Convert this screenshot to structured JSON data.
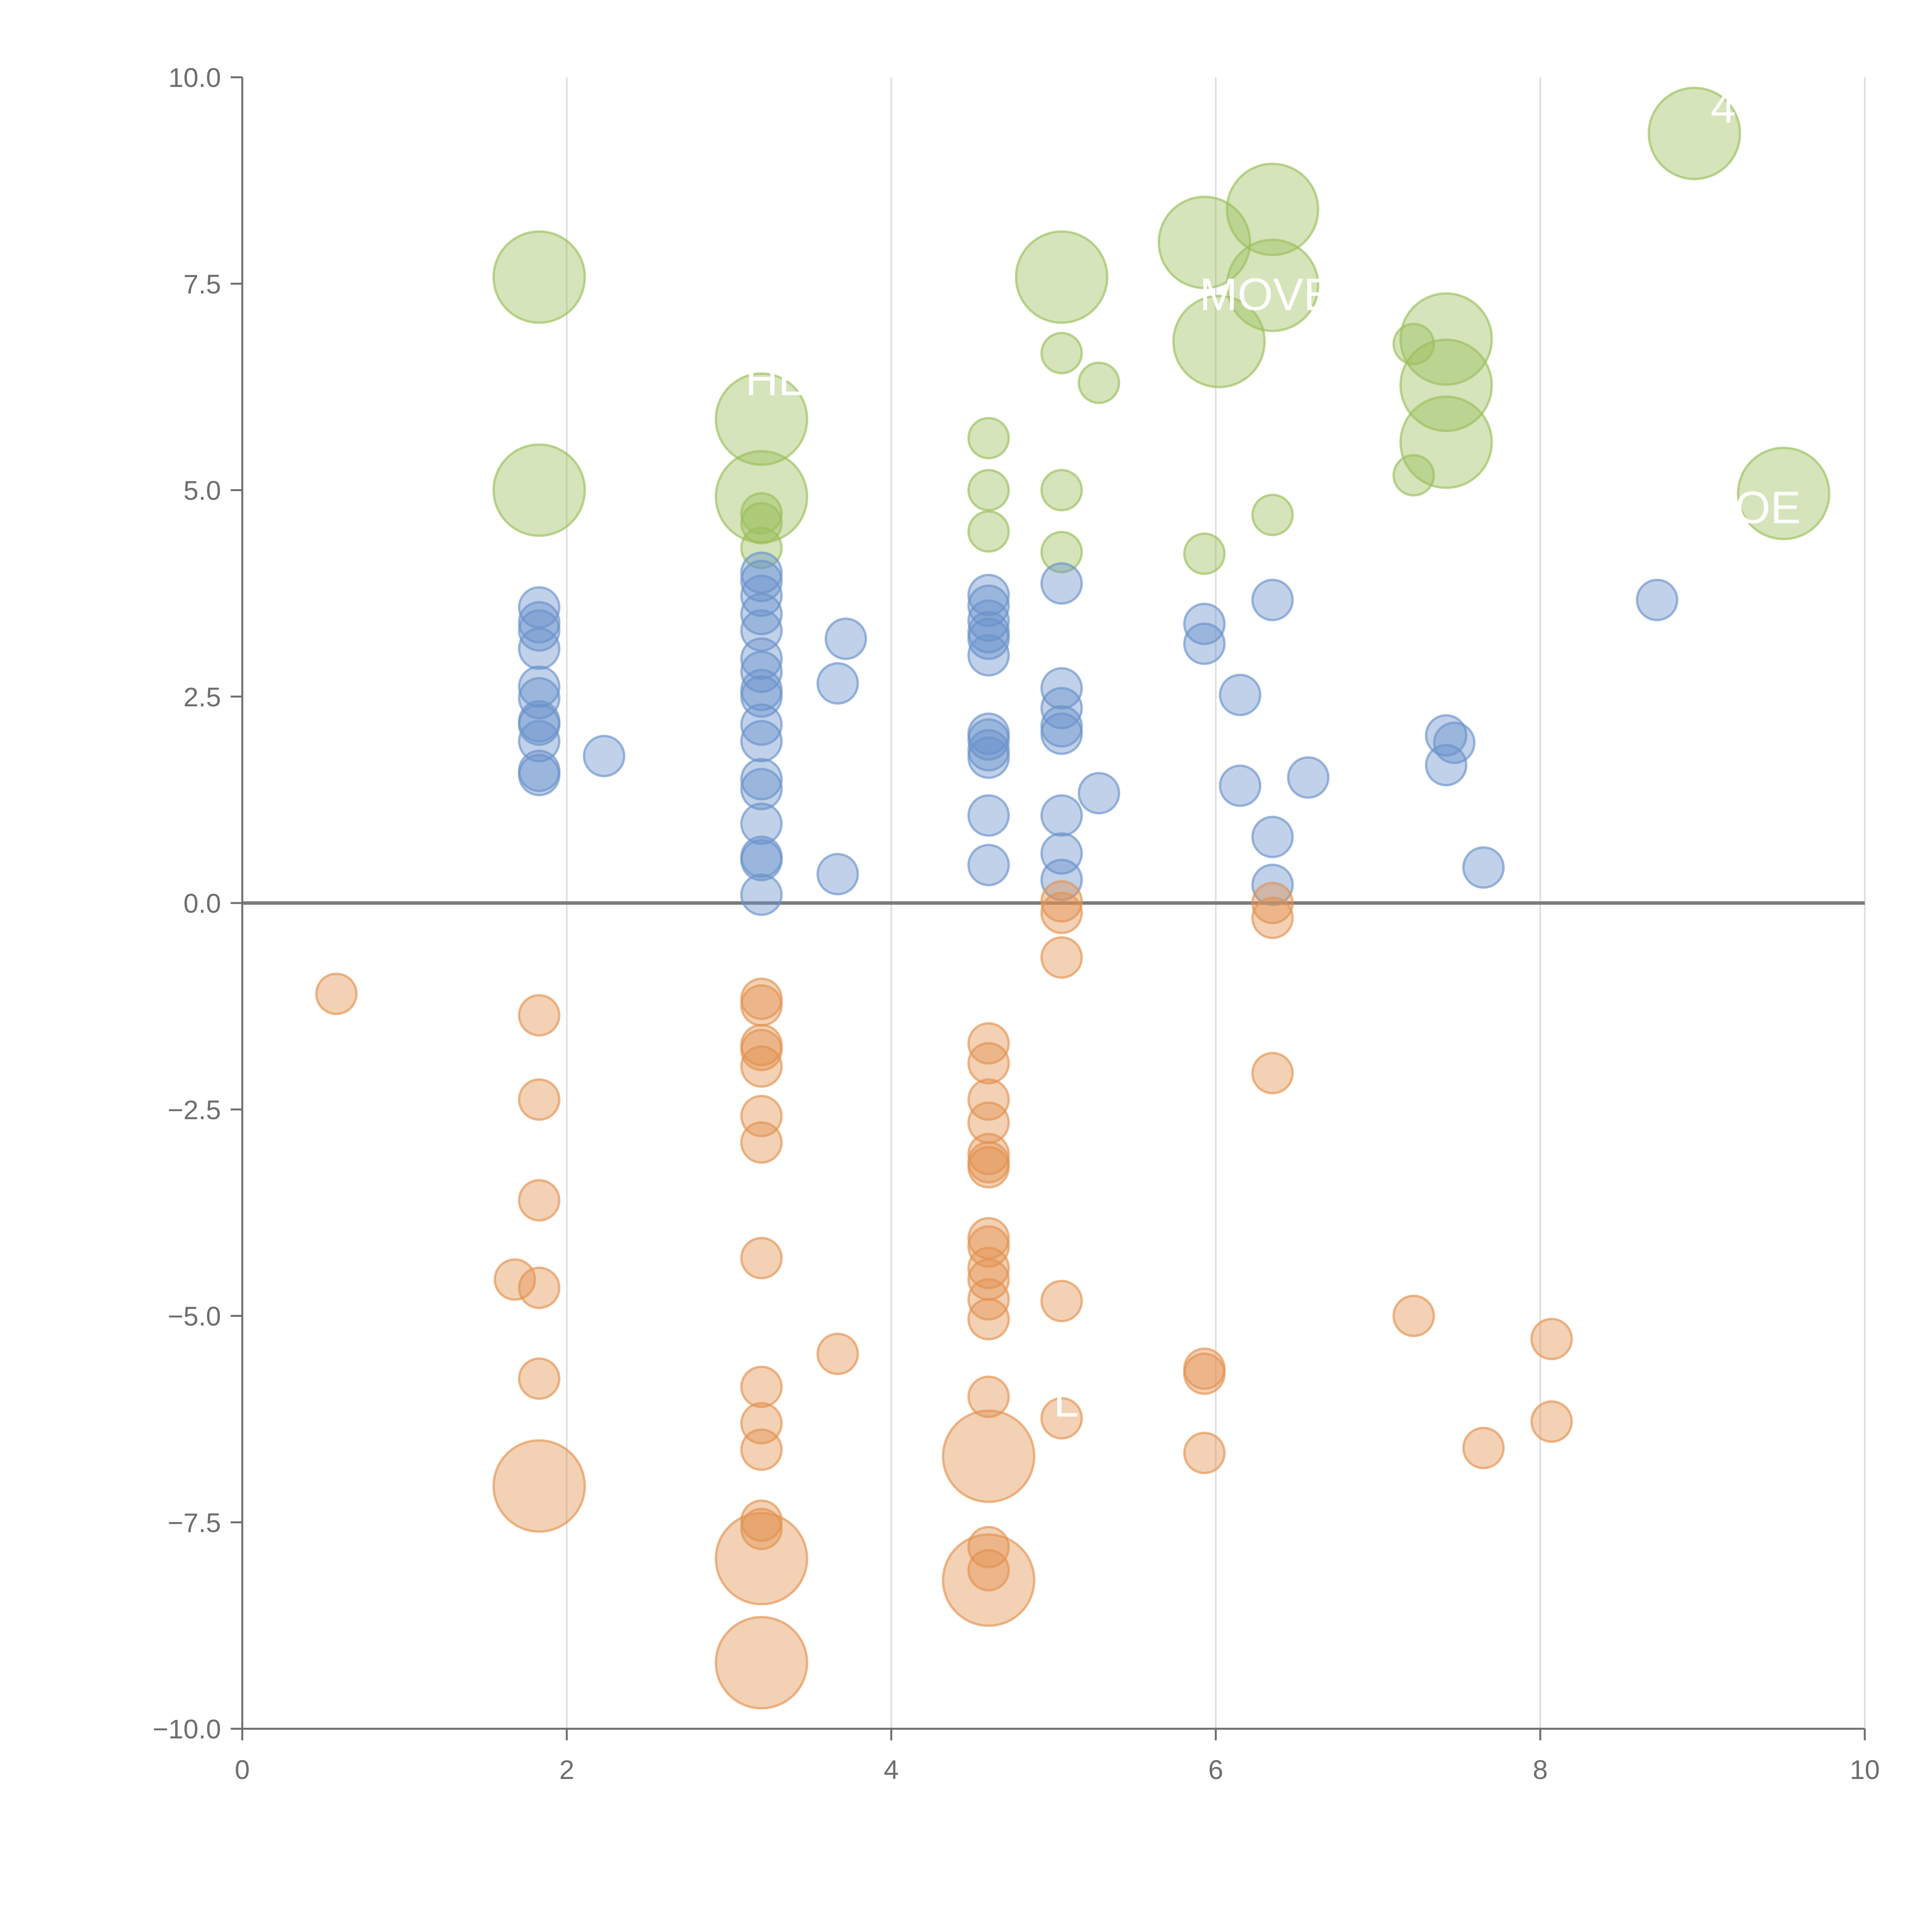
{
  "chart_data": {
    "type": "scatter",
    "title": "",
    "xlabel": "",
    "ylabel": "",
    "xlim": [
      0,
      10
    ],
    "ylim": [
      -10,
      10
    ],
    "x_ticks": [
      0,
      2,
      4,
      6,
      8,
      10
    ],
    "y_ticks": [
      -10,
      -7.5,
      -5,
      -2.5,
      0,
      2.5,
      5,
      7.5,
      10
    ],
    "x_tick_labels": [
      "0",
      "2",
      "4",
      "6",
      "8",
      "10"
    ],
    "y_tick_labels": [
      "−10.0",
      "−7.5",
      "−5.0",
      "−2.5",
      "0.0",
      "2.5",
      "5.0",
      "7.5",
      "10.0"
    ],
    "grid": "vertical",
    "zero_line": true,
    "colors": {
      "green": "#9bbf5a",
      "blue": "#6a92cb",
      "orange": "#e3924e",
      "axis": "#6e6e6e",
      "grid": "#dddddd",
      "zero_line": "#7a7a7a",
      "annotation": "#ffffff"
    },
    "series": [
      {
        "name": "green",
        "color": "#9bbf5a",
        "points": [
          {
            "x": 1.83,
            "y": 7.58,
            "size": 2
          },
          {
            "x": 1.83,
            "y": 5.0,
            "size": 2
          },
          {
            "x": 3.2,
            "y": 5.86,
            "size": 2
          },
          {
            "x": 3.2,
            "y": 4.92,
            "size": 2
          },
          {
            "x": 3.2,
            "y": 4.72,
            "size": 0
          },
          {
            "x": 3.2,
            "y": 4.6,
            "size": 0
          },
          {
            "x": 3.2,
            "y": 4.3,
            "size": 0
          },
          {
            "x": 4.6,
            "y": 5.63,
            "size": 0
          },
          {
            "x": 4.6,
            "y": 5.0,
            "size": 0
          },
          {
            "x": 4.6,
            "y": 4.5,
            "size": 0
          },
          {
            "x": 5.05,
            "y": 7.58,
            "size": 2
          },
          {
            "x": 5.05,
            "y": 6.66,
            "size": 0
          },
          {
            "x": 5.05,
            "y": 5.0,
            "size": 0
          },
          {
            "x": 5.05,
            "y": 4.25,
            "size": 0
          },
          {
            "x": 5.28,
            "y": 6.3,
            "size": 0
          },
          {
            "x": 5.93,
            "y": 8.0,
            "size": 2
          },
          {
            "x": 6.02,
            "y": 6.8,
            "size": 2
          },
          {
            "x": 5.93,
            "y": 4.23,
            "size": 0
          },
          {
            "x": 6.35,
            "y": 8.4,
            "size": 2
          },
          {
            "x": 6.35,
            "y": 7.48,
            "size": 2
          },
          {
            "x": 6.35,
            "y": 4.7,
            "size": 0
          },
          {
            "x": 7.22,
            "y": 6.77,
            "size": 0
          },
          {
            "x": 7.22,
            "y": 5.18,
            "size": 0
          },
          {
            "x": 7.42,
            "y": 6.83,
            "size": 2
          },
          {
            "x": 7.42,
            "y": 6.27,
            "size": 2
          },
          {
            "x": 7.42,
            "y": 5.58,
            "size": 2
          },
          {
            "x": 8.95,
            "y": 9.32,
            "size": 2
          },
          {
            "x": 9.5,
            "y": 4.96,
            "size": 2
          }
        ]
      },
      {
        "name": "blue",
        "color": "#6a92cb",
        "points": [
          {
            "x": 1.83,
            "y": 3.58,
            "size": 0
          },
          {
            "x": 1.83,
            "y": 3.4,
            "size": 0
          },
          {
            "x": 1.83,
            "y": 3.3,
            "size": 0
          },
          {
            "x": 1.83,
            "y": 3.08,
            "size": 0
          },
          {
            "x": 1.83,
            "y": 2.62,
            "size": 0
          },
          {
            "x": 1.83,
            "y": 2.48,
            "size": 0
          },
          {
            "x": 1.83,
            "y": 2.2,
            "size": 0
          },
          {
            "x": 1.83,
            "y": 2.16,
            "size": 0
          },
          {
            "x": 1.83,
            "y": 1.96,
            "size": 0
          },
          {
            "x": 1.83,
            "y": 1.6,
            "size": 0
          },
          {
            "x": 1.83,
            "y": 1.55,
            "size": 0
          },
          {
            "x": 2.23,
            "y": 1.78,
            "size": 0
          },
          {
            "x": 3.2,
            "y": 4.0,
            "size": 0
          },
          {
            "x": 3.2,
            "y": 3.9,
            "size": 0
          },
          {
            "x": 3.2,
            "y": 3.72,
            "size": 0
          },
          {
            "x": 3.2,
            "y": 3.5,
            "size": 0
          },
          {
            "x": 3.2,
            "y": 3.3,
            "size": 0
          },
          {
            "x": 3.2,
            "y": 2.96,
            "size": 0
          },
          {
            "x": 3.2,
            "y": 2.8,
            "size": 0
          },
          {
            "x": 3.2,
            "y": 2.58,
            "size": 0
          },
          {
            "x": 3.2,
            "y": 2.5,
            "size": 0
          },
          {
            "x": 3.2,
            "y": 2.16,
            "size": 0
          },
          {
            "x": 3.2,
            "y": 1.96,
            "size": 0
          },
          {
            "x": 3.2,
            "y": 1.5,
            "size": 0
          },
          {
            "x": 3.2,
            "y": 1.38,
            "size": 0
          },
          {
            "x": 3.2,
            "y": 0.96,
            "size": 0
          },
          {
            "x": 3.2,
            "y": 0.56,
            "size": 0
          },
          {
            "x": 3.2,
            "y": 0.52,
            "size": 0
          },
          {
            "x": 3.2,
            "y": 0.1,
            "size": 0
          },
          {
            "x": 3.67,
            "y": 2.66,
            "size": 0
          },
          {
            "x": 3.72,
            "y": 3.2,
            "size": 0
          },
          {
            "x": 3.67,
            "y": 0.35,
            "size": 0
          },
          {
            "x": 4.6,
            "y": 3.73,
            "size": 0
          },
          {
            "x": 4.6,
            "y": 3.6,
            "size": 0
          },
          {
            "x": 4.6,
            "y": 3.42,
            "size": 0
          },
          {
            "x": 4.6,
            "y": 3.28,
            "size": 0
          },
          {
            "x": 4.6,
            "y": 3.2,
            "size": 0
          },
          {
            "x": 4.6,
            "y": 3.0,
            "size": 0
          },
          {
            "x": 4.6,
            "y": 2.05,
            "size": 0
          },
          {
            "x": 4.6,
            "y": 1.98,
            "size": 0
          },
          {
            "x": 4.6,
            "y": 1.85,
            "size": 0
          },
          {
            "x": 4.6,
            "y": 1.76,
            "size": 0
          },
          {
            "x": 4.6,
            "y": 1.06,
            "size": 0
          },
          {
            "x": 4.6,
            "y": 0.46,
            "size": 0
          },
          {
            "x": 5.05,
            "y": 3.87,
            "size": 0
          },
          {
            "x": 5.05,
            "y": 2.6,
            "size": 0
          },
          {
            "x": 5.05,
            "y": 2.36,
            "size": 0
          },
          {
            "x": 5.05,
            "y": 2.14,
            "size": 0
          },
          {
            "x": 5.05,
            "y": 2.05,
            "size": 0
          },
          {
            "x": 5.05,
            "y": 1.06,
            "size": 0
          },
          {
            "x": 5.05,
            "y": 0.6,
            "size": 0
          },
          {
            "x": 5.05,
            "y": 0.28,
            "size": 0
          },
          {
            "x": 5.28,
            "y": 1.33,
            "size": 0
          },
          {
            "x": 5.93,
            "y": 3.38,
            "size": 0
          },
          {
            "x": 5.93,
            "y": 3.14,
            "size": 0
          },
          {
            "x": 6.15,
            "y": 2.52,
            "size": 0
          },
          {
            "x": 6.15,
            "y": 1.42,
            "size": 0
          },
          {
            "x": 6.35,
            "y": 3.67,
            "size": 0
          },
          {
            "x": 6.35,
            "y": 0.8,
            "size": 0
          },
          {
            "x": 6.35,
            "y": 0.22,
            "size": 0
          },
          {
            "x": 6.57,
            "y": 1.52,
            "size": 0
          },
          {
            "x": 7.42,
            "y": 2.03,
            "size": 0
          },
          {
            "x": 7.47,
            "y": 1.94,
            "size": 0
          },
          {
            "x": 7.42,
            "y": 1.67,
            "size": 0
          },
          {
            "x": 7.65,
            "y": 0.43,
            "size": 0
          },
          {
            "x": 8.72,
            "y": 3.67,
            "size": 0
          }
        ]
      },
      {
        "name": "orange",
        "color": "#e3924e",
        "points": [
          {
            "x": 0.58,
            "y": -1.1,
            "size": 0
          },
          {
            "x": 1.83,
            "y": -1.36,
            "size": 0
          },
          {
            "x": 1.83,
            "y": -2.38,
            "size": 0
          },
          {
            "x": 1.83,
            "y": -3.6,
            "size": 0
          },
          {
            "x": 1.68,
            "y": -4.56,
            "size": 0
          },
          {
            "x": 1.83,
            "y": -4.66,
            "size": 0
          },
          {
            "x": 1.83,
            "y": -5.76,
            "size": 0
          },
          {
            "x": 1.83,
            "y": -7.06,
            "size": 2
          },
          {
            "x": 3.2,
            "y": -1.16,
            "size": 0
          },
          {
            "x": 3.2,
            "y": -1.24,
            "size": 0
          },
          {
            "x": 3.2,
            "y": -1.72,
            "size": 0
          },
          {
            "x": 3.2,
            "y": -1.78,
            "size": 0
          },
          {
            "x": 3.2,
            "y": -1.98,
            "size": 0
          },
          {
            "x": 3.2,
            "y": -2.58,
            "size": 0
          },
          {
            "x": 3.2,
            "y": -2.9,
            "size": 0
          },
          {
            "x": 3.2,
            "y": -4.3,
            "size": 0
          },
          {
            "x": 3.2,
            "y": -5.86,
            "size": 0
          },
          {
            "x": 3.2,
            "y": -6.3,
            "size": 0
          },
          {
            "x": 3.2,
            "y": -6.62,
            "size": 0
          },
          {
            "x": 3.2,
            "y": -7.48,
            "size": 0
          },
          {
            "x": 3.2,
            "y": -7.58,
            "size": 0
          },
          {
            "x": 3.2,
            "y": -7.94,
            "size": 2
          },
          {
            "x": 3.2,
            "y": -9.2,
            "size": 2
          },
          {
            "x": 3.67,
            "y": -5.46,
            "size": 0
          },
          {
            "x": 4.6,
            "y": -1.7,
            "size": 0
          },
          {
            "x": 4.6,
            "y": -1.94,
            "size": 0
          },
          {
            "x": 4.6,
            "y": -2.38,
            "size": 0
          },
          {
            "x": 4.6,
            "y": -2.66,
            "size": 0
          },
          {
            "x": 4.6,
            "y": -3.04,
            "size": 0
          },
          {
            "x": 4.6,
            "y": -3.14,
            "size": 0
          },
          {
            "x": 4.6,
            "y": -3.2,
            "size": 0
          },
          {
            "x": 4.6,
            "y": -4.06,
            "size": 0
          },
          {
            "x": 4.6,
            "y": -4.16,
            "size": 0
          },
          {
            "x": 4.6,
            "y": -4.42,
            "size": 0
          },
          {
            "x": 4.6,
            "y": -4.56,
            "size": 0
          },
          {
            "x": 4.6,
            "y": -4.8,
            "size": 0
          },
          {
            "x": 4.6,
            "y": -5.04,
            "size": 0
          },
          {
            "x": 4.6,
            "y": -5.98,
            "size": 0
          },
          {
            "x": 4.6,
            "y": -6.7,
            "size": 2
          },
          {
            "x": 4.6,
            "y": -7.8,
            "size": 0
          },
          {
            "x": 4.6,
            "y": -8.08,
            "size": 0
          },
          {
            "x": 4.6,
            "y": -8.2,
            "size": 2
          },
          {
            "x": 5.05,
            "y": 0.02,
            "size": 0
          },
          {
            "x": 5.05,
            "y": -0.12,
            "size": 0
          },
          {
            "x": 5.05,
            "y": -0.66,
            "size": 0
          },
          {
            "x": 5.05,
            "y": -4.82,
            "size": 0
          },
          {
            "x": 5.05,
            "y": -6.24,
            "size": 0
          },
          {
            "x": 5.93,
            "y": -5.64,
            "size": 0
          },
          {
            "x": 5.93,
            "y": -5.7,
            "size": 0
          },
          {
            "x": 5.93,
            "y": -6.66,
            "size": 0
          },
          {
            "x": 6.35,
            "y": 0.0,
            "size": 0
          },
          {
            "x": 6.35,
            "y": -0.18,
            "size": 0
          },
          {
            "x": 6.35,
            "y": -2.06,
            "size": 0
          },
          {
            "x": 7.22,
            "y": -5.0,
            "size": 0
          },
          {
            "x": 7.65,
            "y": -6.6,
            "size": 0
          },
          {
            "x": 8.07,
            "y": -5.28,
            "size": 0
          },
          {
            "x": 8.07,
            "y": -6.28,
            "size": 0
          }
        ]
      }
    ],
    "annotations": [
      {
        "text": "HE",
        "x": 3.1,
        "y": 6.15
      },
      {
        "text": "MOVE",
        "x": 5.9,
        "y": 7.18
      },
      {
        "text": "4",
        "x": 9.05,
        "y": 9.45
      },
      {
        "text": "OE",
        "x": 9.2,
        "y": 4.6
      },
      {
        "text": "L",
        "x": 5.0,
        "y": -6.22
      }
    ]
  }
}
